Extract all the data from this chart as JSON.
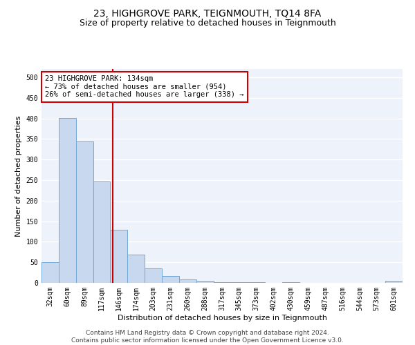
{
  "title": "23, HIGHGROVE PARK, TEIGNMOUTH, TQ14 8FA",
  "subtitle": "Size of property relative to detached houses in Teignmouth",
  "xlabel": "Distribution of detached houses by size in Teignmouth",
  "ylabel": "Number of detached properties",
  "bar_categories": [
    "32sqm",
    "60sqm",
    "89sqm",
    "117sqm",
    "146sqm",
    "174sqm",
    "203sqm",
    "231sqm",
    "260sqm",
    "288sqm",
    "317sqm",
    "345sqm",
    "373sqm",
    "402sqm",
    "430sqm",
    "459sqm",
    "487sqm",
    "516sqm",
    "544sqm",
    "573sqm",
    "601sqm"
  ],
  "bar_values": [
    50,
    401,
    344,
    247,
    130,
    69,
    35,
    17,
    8,
    5,
    2,
    1,
    1,
    0,
    1,
    0,
    0,
    0,
    0,
    0,
    5
  ],
  "bar_color": "#c8d9ef",
  "bar_edgecolor": "#6fa8d8",
  "property_label": "23 HIGHGROVE PARK: 134sqm",
  "annotation_line1": "← 73% of detached houses are smaller (954)",
  "annotation_line2": "26% of semi-detached houses are larger (338) →",
  "vline_color": "#cc0000",
  "vline_position": 3.65,
  "annotation_box_color": "#cc0000",
  "ylim": [
    0,
    520
  ],
  "yticks": [
    0,
    50,
    100,
    150,
    200,
    250,
    300,
    350,
    400,
    450,
    500
  ],
  "footer_line1": "Contains HM Land Registry data © Crown copyright and database right 2024.",
  "footer_line2": "Contains public sector information licensed under the Open Government Licence v3.0.",
  "background_color": "#eef2fb",
  "grid_color": "#ffffff",
  "title_fontsize": 10,
  "subtitle_fontsize": 9,
  "axis_label_fontsize": 8,
  "tick_fontsize": 7,
  "annotation_fontsize": 7.5,
  "footer_fontsize": 6.5
}
